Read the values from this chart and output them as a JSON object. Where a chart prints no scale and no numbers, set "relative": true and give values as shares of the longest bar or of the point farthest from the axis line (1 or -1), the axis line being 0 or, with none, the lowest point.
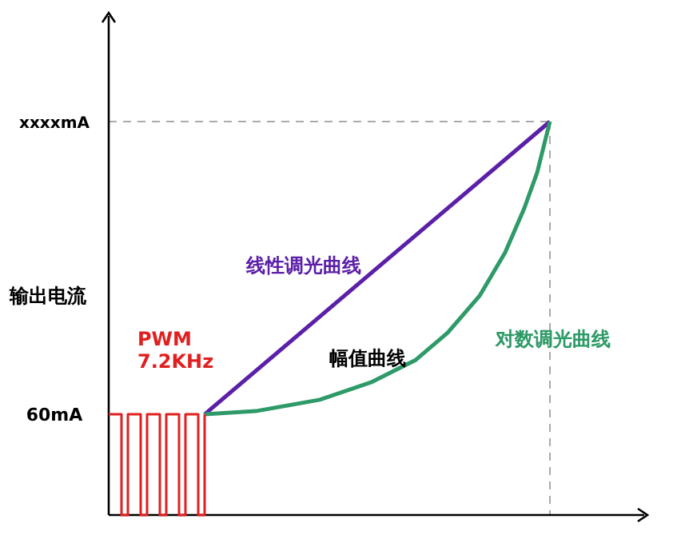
{
  "chart_data": {
    "type": "line",
    "relative": true,
    "ylabel": "输出电流",
    "categories": [
      null,
      null,
      null,
      null,
      null,
      null,
      null,
      null,
      null,
      null,
      null,
      null,
      null,
      null,
      null,
      null,
      null,
      null,
      null,
      null,
      null,
      null,
      null,
      null,
      null,
      null,
      null,
      null,
      null,
      null,
      null,
      null,
      null,
      null,
      null,
      null,
      null,
      null,
      null,
      null,
      null,
      null,
      null,
      null,
      null,
      null,
      null,
      null,
      null,
      null,
      null,
      null,
      null,
      null,
      null,
      null,
      null,
      null,
      null,
      null,
      null,
      null,
      null,
      null,
      null,
      null,
      null,
      null,
      null,
      null
    ],
    "series": [
      {
        "name": "线性调光曲线",
        "color": "#5b1fa8",
        "values": [
          null,
          null,
          null,
          null,
          null,
          null,
          null,
          null,
          null,
          null,
          null,
          null,
          null,
          null,
          null,
          0.256,
          null,
          null,
          null,
          null,
          null,
          null,
          null,
          null,
          null,
          null,
          null,
          null,
          null,
          null,
          null,
          null,
          null,
          null,
          null,
          null,
          null,
          null,
          null,
          null,
          null,
          null,
          null,
          null,
          null,
          null,
          null,
          null,
          null,
          null,
          null,
          null,
          null,
          null,
          null,
          null,
          null,
          null,
          null,
          null,
          null,
          null,
          null,
          null,
          null,
          null,
          null,
          null,
          null,
          1
        ]
      },
      {
        "name": "对数调光曲线",
        "color": "#2e9a68",
        "values": [
          null,
          null,
          null,
          null,
          null,
          null,
          null,
          null,
          null,
          null,
          null,
          null,
          null,
          null,
          null,
          0.256,
          null,
          null,
          null,
          null,
          null,
          null,
          null,
          0.264,
          null,
          null,
          null,
          null,
          null,
          null,
          null,
          null,
          null,
          0.293,
          null,
          null,
          null,
          null,
          null,
          null,
          null,
          0.337,
          null,
          null,
          null,
          null,
          null,
          null,
          0.394,
          null,
          null,
          null,
          null,
          0.463,
          null,
          null,
          null,
          null,
          0.557,
          null,
          null,
          null,
          0.667,
          null,
          null,
          0.78,
          null,
          0.87,
          null,
          1
        ]
      },
      {
        "name": "PWM 7.2KHz",
        "type": "step",
        "color": "#e02020",
        "values": [
          0.256,
          0.256,
          0,
          0.256,
          0.256,
          0,
          0.256,
          0.256,
          0,
          0.256,
          0.256,
          0,
          0.256,
          0.256,
          0,
          0.256,
          null,
          null,
          null,
          null,
          null,
          null,
          null,
          null,
          null,
          null,
          null,
          null,
          null,
          null,
          null,
          null,
          null,
          null,
          null,
          null,
          null,
          null,
          null,
          null,
          null,
          null,
          null,
          null,
          null,
          null,
          null,
          null,
          null,
          null,
          null,
          null,
          null,
          null,
          null,
          null,
          null,
          null,
          null,
          null,
          null,
          null,
          null,
          null,
          null,
          null,
          null,
          null,
          null,
          null
        ]
      }
    ],
    "ref_lines": [
      {
        "axis": "y",
        "value": 1,
        "label": "xxxxmA",
        "color": "#aaaaaa",
        "line_style": "dashed"
      }
    ],
    "annotations": [
      "60mA",
      "幅值曲线"
    ]
  }
}
